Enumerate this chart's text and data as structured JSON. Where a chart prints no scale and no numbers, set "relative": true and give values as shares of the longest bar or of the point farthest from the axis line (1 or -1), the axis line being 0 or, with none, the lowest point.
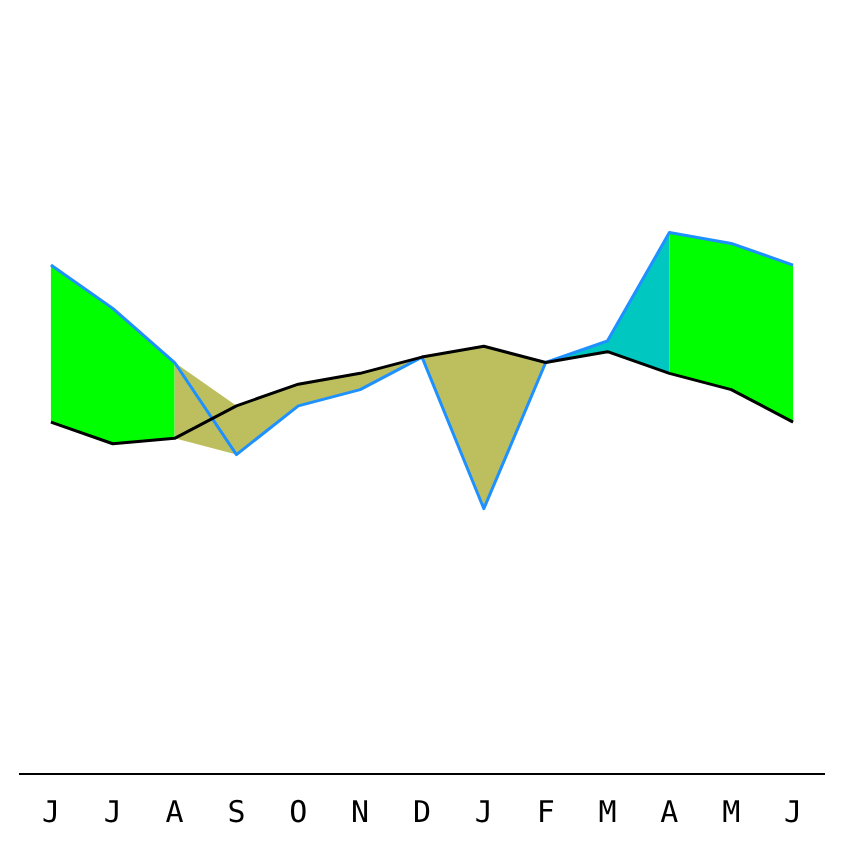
{
  "chart_data": {
    "type": "line",
    "relative": true,
    "categories": [
      "J",
      "J",
      "A",
      "S",
      "O",
      "N",
      "D",
      "J",
      "F",
      "M",
      "A",
      "M",
      "J"
    ],
    "series": [
      {
        "color": "#00ff00",
        "values": [
          null,
          null,
          null,
          null,
          null,
          null,
          null,
          null,
          null,
          null,
          null,
          null,
          null
        ],
        "lower": [
          0.65,
          0.61,
          0.62,
          null,
          null,
          null,
          null,
          null,
          null,
          null,
          0.74,
          0.71,
          0.65
        ],
        "upper": [
          0.94,
          0.86,
          0.76,
          null,
          null,
          null,
          null,
          null,
          null,
          null,
          1.0,
          0.98,
          0.94
        ]
      },
      {
        "color": "#bdbf5f",
        "values": [
          null,
          null,
          null,
          null,
          null,
          null,
          null,
          null,
          null,
          null,
          null,
          null,
          null
        ],
        "lower": [
          null,
          null,
          0.62,
          0.59,
          0.68,
          0.71,
          0.77,
          0.49,
          0.76,
          null,
          null,
          null,
          null
        ],
        "upper": [
          null,
          null,
          0.76,
          0.68,
          0.72,
          0.74,
          0.77,
          0.79,
          0.76,
          null,
          null,
          null,
          null
        ]
      },
      {
        "color": "#00c8c0",
        "values": [
          null,
          null,
          null,
          null,
          null,
          null,
          null,
          null,
          null,
          null,
          null,
          null,
          null
        ],
        "lower": [
          null,
          null,
          null,
          null,
          null,
          null,
          null,
          null,
          0.76,
          0.78,
          0.74,
          null,
          null
        ],
        "upper": [
          null,
          null,
          null,
          null,
          null,
          null,
          null,
          null,
          0.76,
          0.8,
          1.0,
          null,
          null
        ]
      },
      {
        "color": "#000000",
        "values": [
          0.65,
          0.61,
          0.62,
          0.68,
          0.72,
          0.74,
          0.77,
          0.79,
          0.76,
          0.78,
          0.74,
          0.71,
          0.65
        ]
      },
      {
        "color": "#1e90ff",
        "values": [
          0.94,
          0.86,
          0.76,
          0.59,
          0.68,
          0.71,
          0.77,
          0.49,
          0.76,
          0.8,
          1.0,
          0.98,
          0.94
        ]
      }
    ],
    "legend": false,
    "grid": false,
    "marker": "none",
    "line_style": "solid"
  }
}
